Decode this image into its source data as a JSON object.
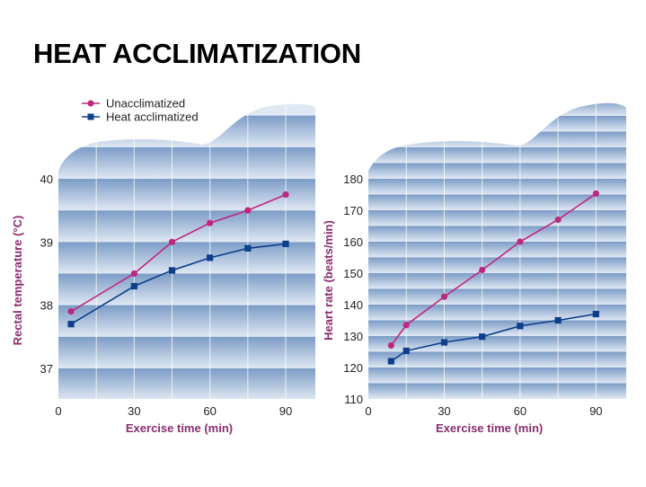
{
  "title": "HEAT ACCLIMATIZATION",
  "colors": {
    "unacclimatized": "#c0267e",
    "heat_acclimatized": "#0d3f8c",
    "axis_label": "#8a2d6f",
    "band_dark": "#7c9cc6",
    "band_light": "#dfe8f3"
  },
  "legend": {
    "placement": "top-left",
    "items": [
      {
        "label": "Unacclimatized",
        "marker": "circle"
      },
      {
        "label": "Heat acclimatized",
        "marker": "square"
      }
    ]
  },
  "chart_data": [
    {
      "type": "line",
      "xlabel": "Exercise time (min)",
      "ylabel": "Rectal temperature (°C)",
      "xlim": [
        0,
        101
      ],
      "ylim": [
        36.5,
        40.9
      ],
      "xticks": [
        "0",
        "30",
        "60",
        "90"
      ],
      "yticks": [
        "37",
        "38",
        "39",
        "40"
      ],
      "grid": true,
      "series": [
        {
          "name": "Unacclimatized",
          "marker": "circle",
          "x": [
            5,
            30,
            45,
            60,
            75,
            90
          ],
          "y": [
            37.9,
            38.5,
            39.0,
            39.3,
            39.5,
            39.75
          ]
        },
        {
          "name": "Heat acclimatized",
          "marker": "square",
          "x": [
            5,
            30,
            45,
            60,
            75,
            90
          ],
          "y": [
            37.7,
            38.3,
            38.55,
            38.75,
            38.9,
            38.97
          ]
        }
      ]
    },
    {
      "type": "line",
      "xlabel": "Exercise time (min)",
      "ylabel": "Heart rate (beats/min)",
      "xlim": [
        0,
        101
      ],
      "ylim": [
        110,
        188
      ],
      "xticks": [
        "0",
        "30",
        "60",
        "90"
      ],
      "yticks": [
        "110",
        "120",
        "130",
        "140",
        "150",
        "160",
        "170",
        "180"
      ],
      "grid": true,
      "series": [
        {
          "name": "Unacclimatized",
          "marker": "circle",
          "x": [
            9,
            15,
            30,
            45,
            60,
            75,
            90
          ],
          "y": [
            127,
            133.5,
            142.5,
            151,
            160,
            167,
            175.3
          ]
        },
        {
          "name": "Heat acclimatized",
          "marker": "square",
          "x": [
            9,
            15,
            30,
            45,
            60,
            75,
            90
          ],
          "y": [
            122,
            125.3,
            128,
            129.8,
            133.2,
            135,
            137
          ]
        }
      ]
    }
  ]
}
